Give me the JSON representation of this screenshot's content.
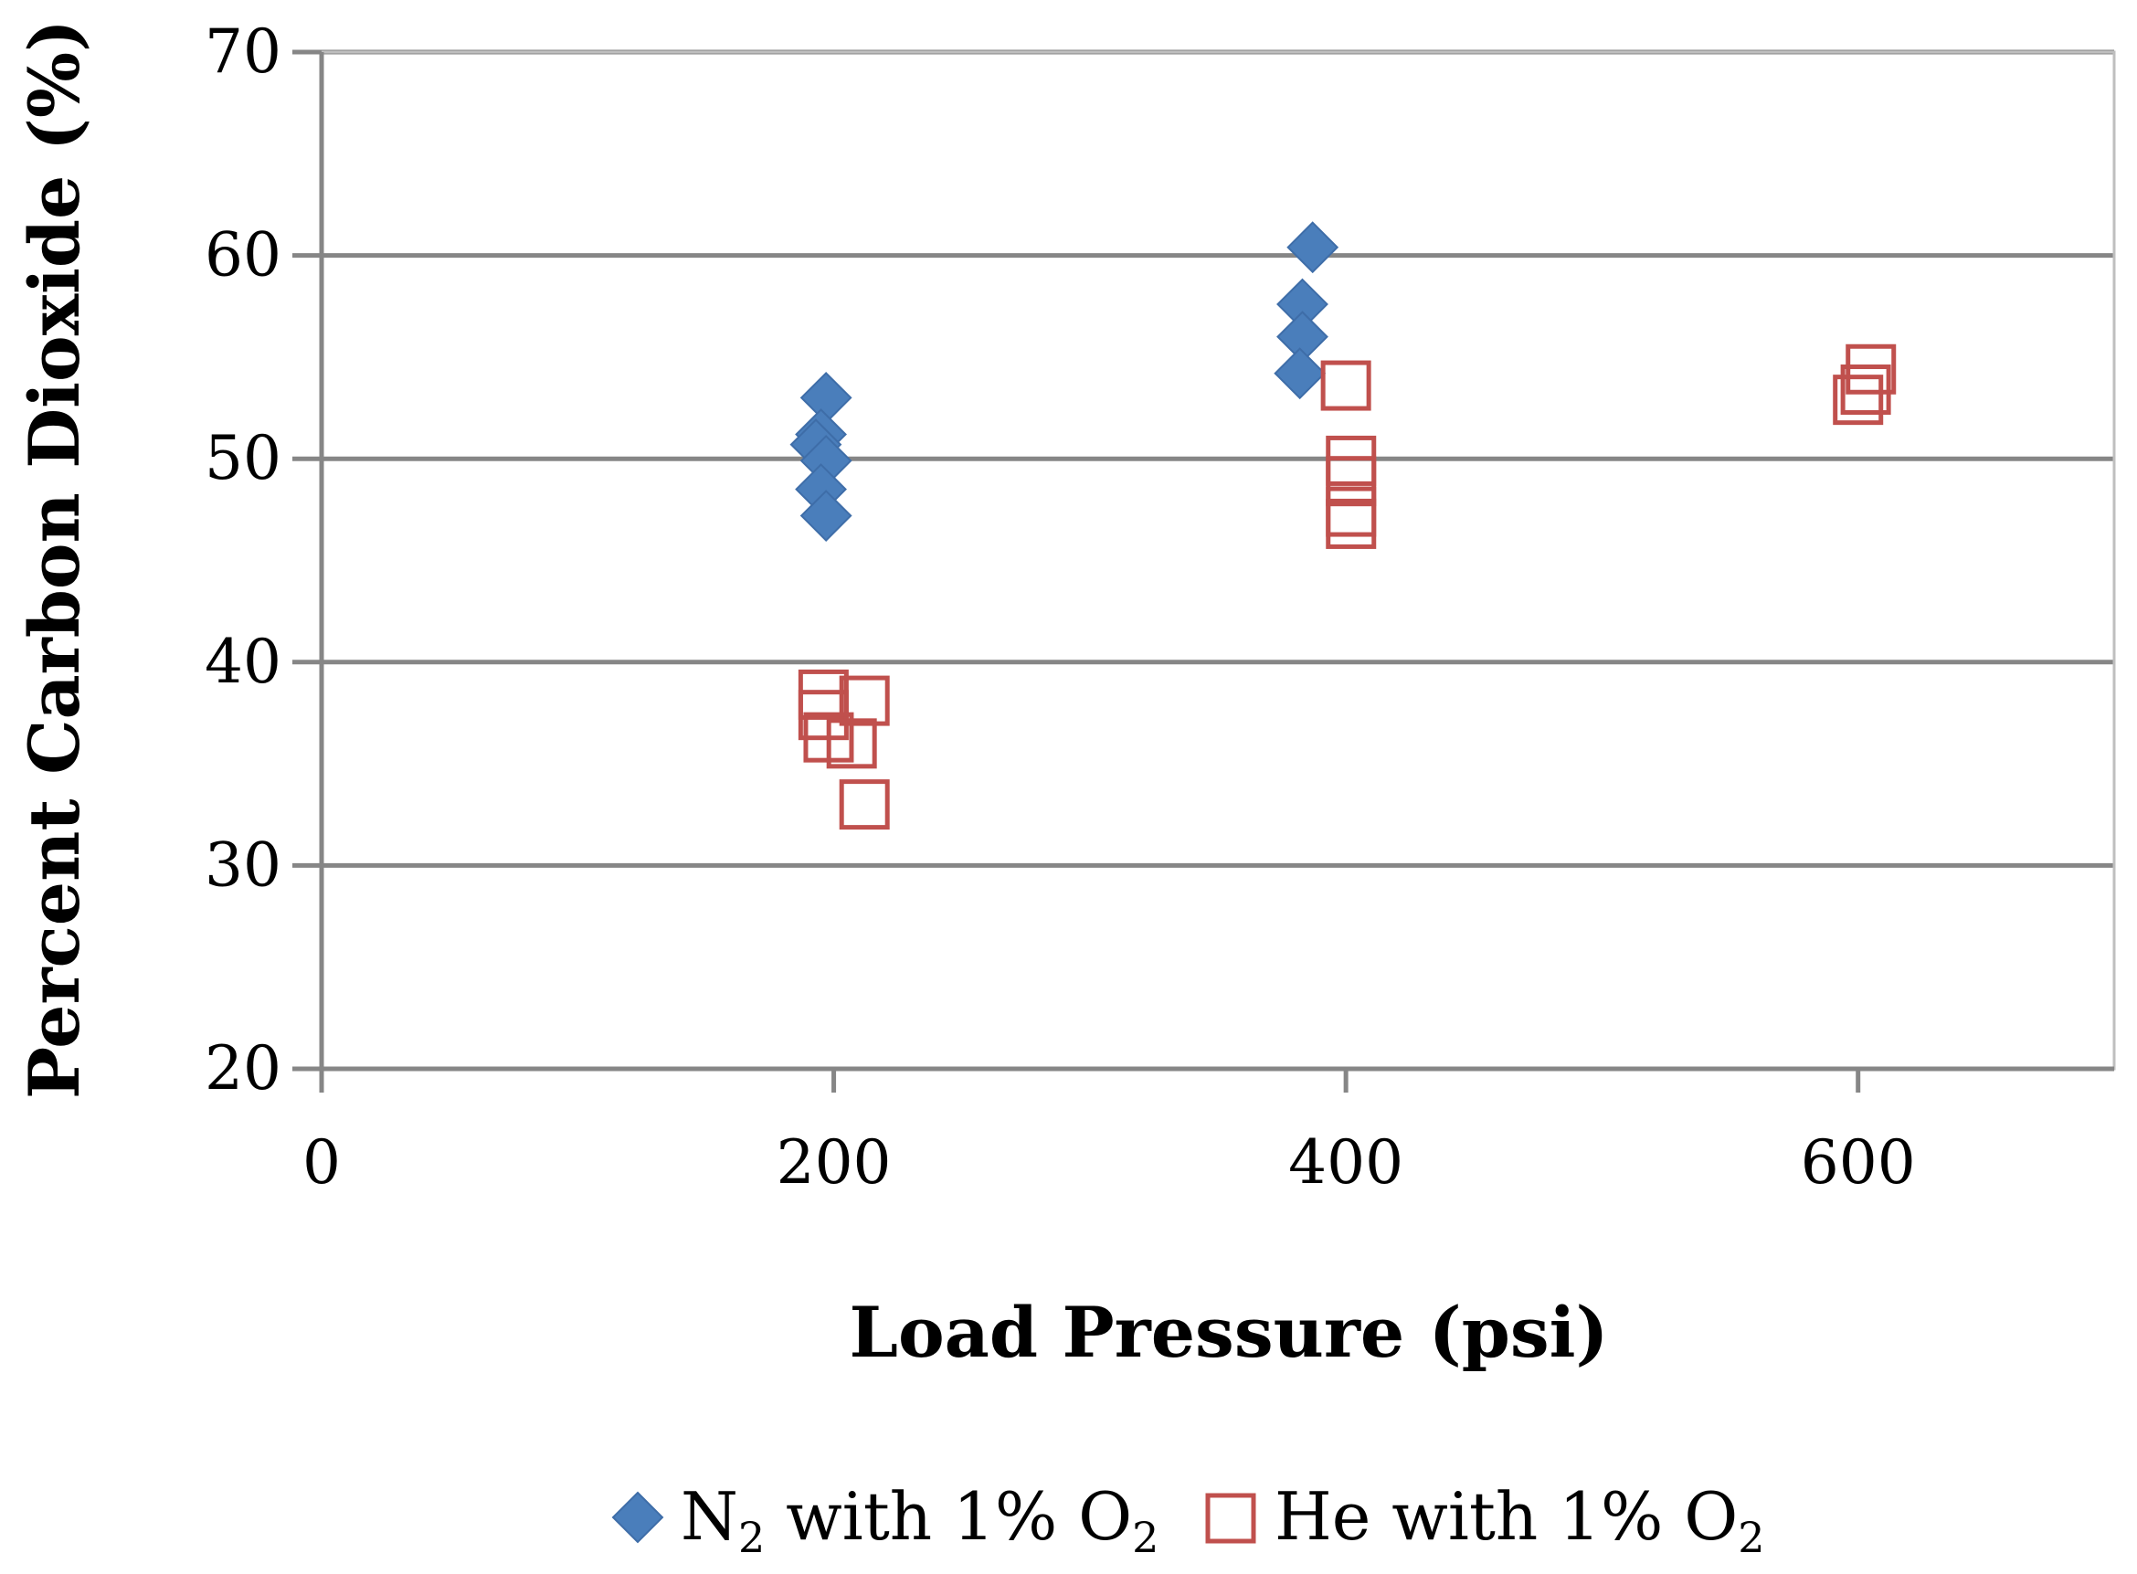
{
  "chart_data": {
    "type": "scatter",
    "title": "",
    "xlabel": "Load Pressure (psi)",
    "ylabel": "Percent Carbon Dioxide (%)",
    "xlim": [
      0,
      700
    ],
    "ylim": [
      20,
      70
    ],
    "xticks": [
      0,
      200,
      400,
      600
    ],
    "yticks": [
      20,
      30,
      40,
      50,
      60,
      70
    ],
    "grid": "horizontal",
    "legend_position": "bottom",
    "series": [
      {
        "name": "N2 with 1% O2",
        "legend_parts": [
          "N",
          "2",
          " with 1% O",
          "2"
        ],
        "marker": "diamond",
        "color": "#4a7ebb",
        "points": [
          {
            "x": 197,
            "y": 53.0
          },
          {
            "x": 195,
            "y": 51.2
          },
          {
            "x": 193,
            "y": 50.7
          },
          {
            "x": 197,
            "y": 49.9
          },
          {
            "x": 195,
            "y": 48.5
          },
          {
            "x": 197,
            "y": 47.2
          },
          {
            "x": 387,
            "y": 60.4
          },
          {
            "x": 383,
            "y": 57.6
          },
          {
            "x": 383,
            "y": 56.0
          },
          {
            "x": 382,
            "y": 54.2
          }
        ]
      },
      {
        "name": "He with 1% O2",
        "legend_parts": [
          "He with 1% O",
          "2"
        ],
        "marker": "square-open",
        "color": "#c0504d",
        "points": [
          {
            "x": 196,
            "y": 38.4
          },
          {
            "x": 212,
            "y": 38.1
          },
          {
            "x": 196,
            "y": 37.4
          },
          {
            "x": 198,
            "y": 36.3
          },
          {
            "x": 207,
            "y": 36.0
          },
          {
            "x": 212,
            "y": 33.0
          },
          {
            "x": 400,
            "y": 53.6
          },
          {
            "x": 402,
            "y": 49.9
          },
          {
            "x": 402,
            "y": 48.9
          },
          {
            "x": 402,
            "y": 47.4
          },
          {
            "x": 402,
            "y": 46.8
          },
          {
            "x": 605,
            "y": 54.4
          },
          {
            "x": 603,
            "y": 53.4
          },
          {
            "x": 600,
            "y": 52.9
          }
        ]
      }
    ]
  }
}
